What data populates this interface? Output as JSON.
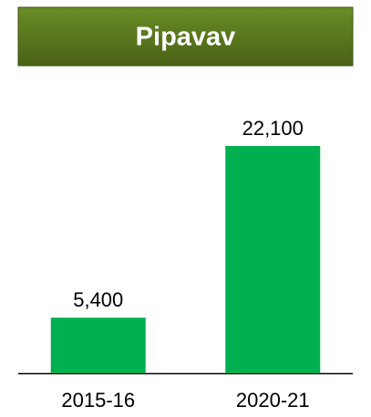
{
  "chart_data": {
    "type": "bar",
    "title": "Pipavav",
    "categories": [
      "2015-16",
      "2020-21"
    ],
    "values": [
      5400,
      22100
    ],
    "value_labels": [
      "5,400",
      "22,100"
    ],
    "color": "#00b050"
  }
}
